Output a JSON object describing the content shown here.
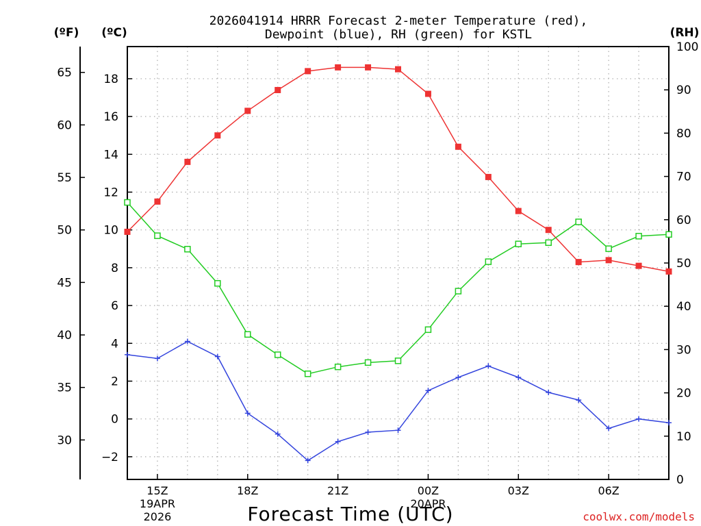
{
  "chart_data": {
    "type": "line",
    "title_line1": "2026041914 HRRR Forecast 2-meter Temperature (red),",
    "title_line2": "Dewpoint (blue), RH (green) for KSTL",
    "xlabel": "Forecast Time (UTC)",
    "credit": "coolwx.com/models",
    "unit_f": "(ºF)",
    "unit_c": "(ºC)",
    "unit_rh": "(RH)",
    "x_hours": [
      0,
      1,
      2,
      3,
      4,
      5,
      6,
      7,
      8,
      9,
      10,
      11,
      12,
      13,
      14,
      15,
      16,
      17,
      18
    ],
    "x_ticks": [
      {
        "hour": 1,
        "lines": [
          "15Z",
          "19APR",
          "2026"
        ]
      },
      {
        "hour": 4,
        "lines": [
          "18Z"
        ]
      },
      {
        "hour": 7,
        "lines": [
          "21Z"
        ]
      },
      {
        "hour": 10,
        "lines": [
          "00Z",
          "20APR"
        ]
      },
      {
        "hour": 13,
        "lines": [
          "03Z"
        ]
      },
      {
        "hour": 16,
        "lines": [
          "06Z"
        ]
      }
    ],
    "xlim": [
      0,
      18
    ],
    "ylim_c": [
      -3.2,
      19.7
    ],
    "ylim_rh": [
      0,
      100
    ],
    "y_ticks_c": [
      -2,
      0,
      2,
      4,
      6,
      8,
      10,
      12,
      14,
      16,
      18
    ],
    "y_ticks_f": [
      30,
      35,
      40,
      45,
      50,
      55,
      60,
      65
    ],
    "y_ticks_rh": [
      0,
      10,
      20,
      30,
      40,
      50,
      60,
      70,
      80,
      90,
      100
    ],
    "grid": true,
    "series": [
      {
        "name": "Temperature",
        "color": "#ee3333",
        "axis": "c",
        "marker": "filled-square",
        "values": [
          9.9,
          11.5,
          13.6,
          15.0,
          16.3,
          17.4,
          18.4,
          18.6,
          18.6,
          18.5,
          17.2,
          14.4,
          12.8,
          11.0,
          10.0,
          8.3,
          8.4,
          8.1,
          7.8
        ]
      },
      {
        "name": "Dewpoint",
        "color": "#3344dd",
        "axis": "c",
        "marker": "plus",
        "values": [
          3.4,
          3.2,
          4.1,
          3.3,
          0.3,
          -0.8,
          -2.2,
          -1.2,
          -0.7,
          -0.6,
          1.5,
          2.2,
          2.8,
          2.2,
          1.4,
          1.0,
          -0.5,
          0.0,
          -0.2
        ]
      },
      {
        "name": "RH",
        "color": "#22cc22",
        "axis": "rh",
        "marker": "open-square",
        "values": [
          64,
          56.3,
          53.2,
          45.3,
          33.5,
          28.8,
          24.4,
          26.0,
          27.0,
          27.4,
          34.6,
          43.5,
          50.3,
          54.4,
          54.7,
          59.5,
          53.3,
          56.2,
          56.6
        ]
      }
    ]
  }
}
